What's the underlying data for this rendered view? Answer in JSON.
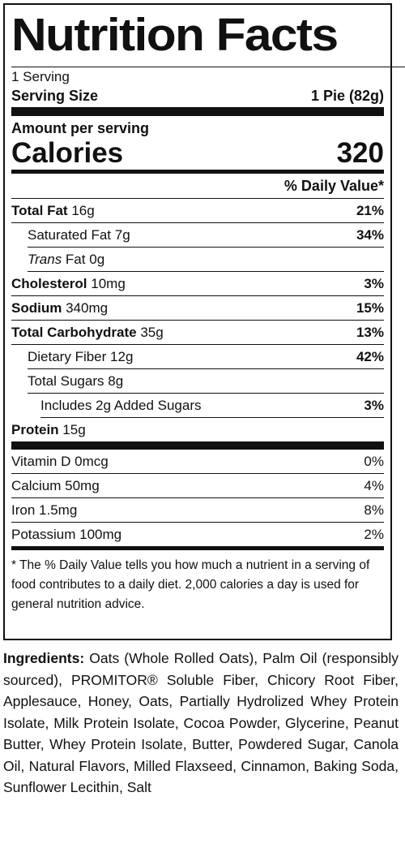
{
  "label": {
    "title": "Nutrition Facts",
    "servings": "1 Serving",
    "serving_size_label": "Serving Size",
    "serving_size_value": "1 Pie (82g)",
    "amount_per_serving": "Amount per serving",
    "calories_label": "Calories",
    "calories_value": "320",
    "daily_value_header": "% Daily Value*",
    "nutrients": [
      {
        "name": "Total Fat",
        "amount": "16g",
        "dv": "21%"
      },
      {
        "name": "Saturated Fat",
        "amount": "7g",
        "dv": "34%"
      },
      {
        "name": "Trans",
        "name_rest": " Fat",
        "amount": "0g",
        "dv": ""
      },
      {
        "name": "Cholesterol",
        "amount": "10mg",
        "dv": "3%"
      },
      {
        "name": "Sodium",
        "amount": "340mg",
        "dv": "15%"
      },
      {
        "name": "Total Carbohydrate",
        "amount": "35g",
        "dv": "13%"
      },
      {
        "name": "Dietary Fiber",
        "amount": "12g",
        "dv": "42%"
      },
      {
        "name": "Total Sugars",
        "amount": "8g",
        "dv": ""
      },
      {
        "name": "Includes 2g Added Sugars",
        "amount": "",
        "dv": "3%"
      },
      {
        "name": "Protein",
        "amount": "15g",
        "dv": ""
      }
    ],
    "vitamins": [
      {
        "name": "Vitamin D",
        "amount": "0mcg",
        "dv": "0%"
      },
      {
        "name": "Calcium",
        "amount": "50mg",
        "dv": "4%"
      },
      {
        "name": "Iron",
        "amount": "1.5mg",
        "dv": "8%"
      },
      {
        "name": "Potassium",
        "amount": "100mg",
        "dv": "2%"
      }
    ],
    "footnote": "* The % Daily Value tells you how much a nutrient in a serving of food contributes to a daily diet. 2,000 calories a day is used for general nutrition advice."
  },
  "ingredients": {
    "heading": "Ingredients:",
    "text": "Oats (Whole Rolled Oats), Palm Oil (responsibly sourced), PROMITOR® Soluble Fiber, Chicory Root Fiber, Applesauce, Honey, Oats, Partially Hydrolized Whey Protein Isolate, Milk Protein Isolate, Cocoa Powder, Glycerine, Peanut Butter, Whey Protein Isolate, Butter, Powdered Sugar, Canola Oil, Natural Flavors, Milled Flaxseed, Cinnamon, Baking Soda, Sunflower Lecithin, Salt"
  }
}
